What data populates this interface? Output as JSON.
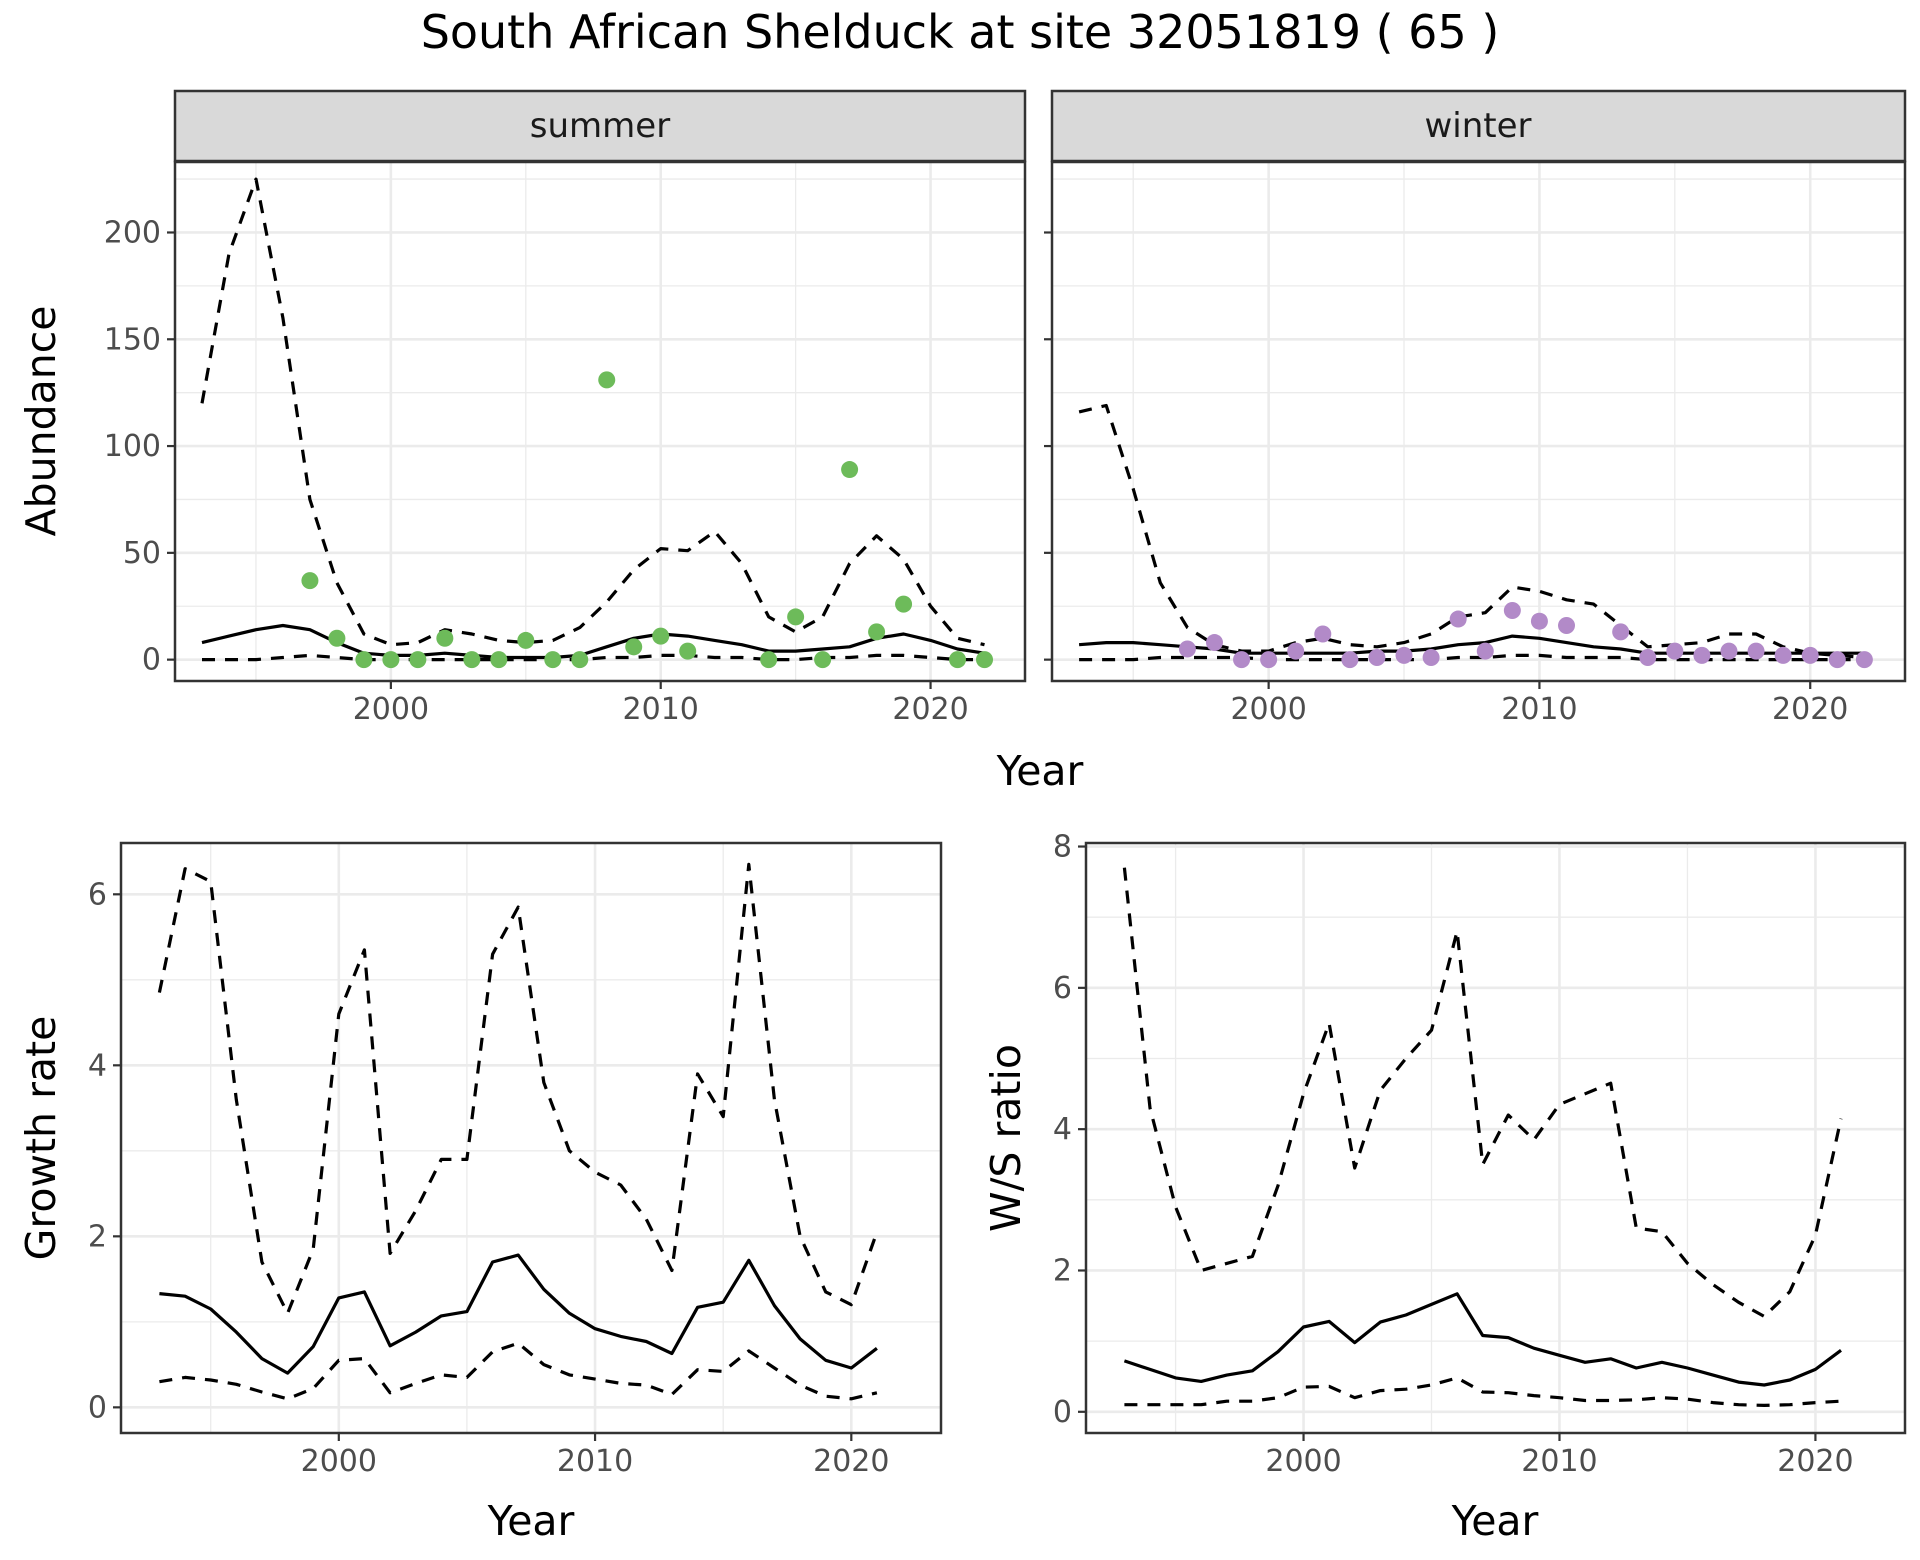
{
  "title": "South African Shelduck at site 32051819 ( 65 )",
  "colors": {
    "summer": "#6dbb5a",
    "winter": "#b28ac8",
    "line": "#000000"
  },
  "chart_data": [
    {
      "type": "line",
      "facet": "summer",
      "xlabel": "Year",
      "ylabel": "Abundance",
      "xlim": [
        1992,
        2023.5
      ],
      "ylim": [
        -10,
        233
      ],
      "xticks": [
        2000,
        2010,
        2020
      ],
      "yticks": [
        0,
        50,
        100,
        150,
        200
      ],
      "x": [
        1993,
        1994,
        1995,
        1996,
        1997,
        1998,
        1999,
        2000,
        2001,
        2002,
        2003,
        2004,
        2005,
        2006,
        2007,
        2008,
        2009,
        2010,
        2011,
        2012,
        2013,
        2014,
        2015,
        2016,
        2017,
        2018,
        2019,
        2020,
        2021,
        2022
      ],
      "series": [
        {
          "role": "mid",
          "style": "solid",
          "values": [
            8,
            11,
            14,
            16,
            14,
            8,
            3,
            2,
            2,
            3,
            2,
            1,
            1,
            1,
            2,
            6,
            10,
            12,
            11,
            9,
            7,
            4,
            4,
            5,
            6,
            10,
            12,
            9,
            5,
            3
          ]
        },
        {
          "role": "upper",
          "style": "dashed",
          "values": [
            120,
            190,
            225,
            160,
            75,
            36,
            12,
            7,
            8,
            14,
            12,
            9,
            8,
            9,
            15,
            27,
            42,
            52,
            51,
            60,
            45,
            20,
            13,
            20,
            45,
            58,
            47,
            25,
            10,
            7
          ]
        },
        {
          "role": "lower",
          "style": "dashed",
          "values": [
            0,
            0,
            0,
            1,
            2,
            1,
            0,
            0,
            0,
            0,
            0,
            0,
            0,
            0,
            0,
            1,
            1,
            2,
            2,
            1,
            1,
            0,
            0,
            1,
            1,
            2,
            2,
            1,
            0,
            0
          ]
        }
      ],
      "points": {
        "x": [
          1997,
          1998,
          1999,
          2000,
          2001,
          2002,
          2003,
          2004,
          2005,
          2006,
          2007,
          2008,
          2009,
          2010,
          2011,
          2014,
          2015,
          2016,
          2017,
          2018,
          2019,
          2021,
          2022
        ],
        "y": [
          37,
          10,
          0,
          0,
          0,
          10,
          0,
          0,
          9,
          0,
          0,
          131,
          6,
          11,
          4,
          0,
          20,
          0,
          89,
          13,
          26,
          0,
          0
        ]
      }
    },
    {
      "type": "line",
      "facet": "winter",
      "xlabel": "Year",
      "ylabel": "Abundance",
      "xlim": [
        1992,
        2023.5
      ],
      "ylim": [
        -10,
        233
      ],
      "xticks": [
        2000,
        2010,
        2020
      ],
      "x": [
        1993,
        1994,
        1995,
        1996,
        1997,
        1998,
        1999,
        2000,
        2001,
        2002,
        2003,
        2004,
        2005,
        2006,
        2007,
        2008,
        2009,
        2010,
        2011,
        2012,
        2013,
        2014,
        2015,
        2016,
        2017,
        2018,
        2019,
        2020,
        2021,
        2022
      ],
      "series": [
        {
          "role": "mid",
          "style": "solid",
          "values": [
            7,
            8,
            8,
            7,
            6,
            5,
            3,
            3,
            3,
            3,
            3,
            4,
            4,
            5,
            7,
            8,
            11,
            10,
            8,
            6,
            5,
            3,
            3,
            3,
            3,
            3,
            3,
            3,
            3,
            3
          ]
        },
        {
          "role": "upper",
          "style": "dashed",
          "values": [
            116,
            119,
            80,
            36,
            15,
            7,
            4,
            4,
            8,
            10,
            7,
            6,
            8,
            12,
            20,
            22,
            34,
            32,
            28,
            26,
            16,
            6,
            7,
            8,
            12,
            12,
            6,
            3,
            2,
            1
          ]
        },
        {
          "role": "lower",
          "style": "dashed",
          "values": [
            0,
            0,
            0,
            1,
            1,
            1,
            1,
            0,
            0,
            0,
            0,
            0,
            0,
            0,
            1,
            1,
            2,
            2,
            1,
            1,
            1,
            0,
            0,
            0,
            0,
            0,
            0,
            0,
            0,
            0
          ]
        }
      ],
      "points": {
        "x": [
          1997,
          1998,
          1999,
          2000,
          2001,
          2002,
          2003,
          2004,
          2005,
          2006,
          2007,
          2008,
          2009,
          2010,
          2011,
          2013,
          2014,
          2015,
          2016,
          2017,
          2018,
          2019,
          2020,
          2021,
          2022
        ],
        "y": [
          5,
          8,
          0,
          0,
          4,
          12,
          0,
          1,
          2,
          1,
          19,
          4,
          23,
          18,
          16,
          13,
          1,
          4,
          2,
          4,
          4,
          2,
          2,
          0,
          0
        ]
      }
    },
    {
      "type": "line",
      "xlabel": "Year",
      "ylabel": "Growth rate",
      "xlim": [
        1991.5,
        2023.5
      ],
      "ylim": [
        -0.3,
        6.6
      ],
      "xticks": [
        2000,
        2010,
        2020
      ],
      "yticks": [
        0,
        2,
        4,
        6
      ],
      "x": [
        1993,
        1994,
        1995,
        1996,
        1997,
        1998,
        1999,
        2000,
        2001,
        2002,
        2003,
        2004,
        2005,
        2006,
        2007,
        2008,
        2009,
        2010,
        2011,
        2012,
        2013,
        2014,
        2015,
        2016,
        2017,
        2018,
        2019,
        2020,
        2021
      ],
      "series": [
        {
          "role": "mid",
          "style": "solid",
          "values": [
            1.33,
            1.3,
            1.15,
            0.88,
            0.57,
            0.4,
            0.71,
            1.28,
            1.35,
            0.72,
            0.88,
            1.07,
            1.12,
            1.7,
            1.78,
            1.38,
            1.1,
            0.92,
            0.83,
            0.77,
            0.63,
            1.17,
            1.23,
            1.72,
            1.19,
            0.8,
            0.55,
            0.46,
            0.69
          ]
        },
        {
          "role": "upper",
          "style": "dashed",
          "values": [
            4.85,
            6.3,
            6.15,
            3.6,
            1.7,
            1.1,
            1.85,
            4.6,
            5.35,
            1.8,
            2.3,
            2.9,
            2.9,
            5.3,
            5.85,
            3.8,
            3.0,
            2.75,
            2.6,
            2.2,
            1.6,
            3.9,
            3.4,
            6.35,
            3.6,
            2.0,
            1.35,
            1.2,
            2.05
          ]
        },
        {
          "role": "lower",
          "style": "dashed",
          "values": [
            0.3,
            0.35,
            0.32,
            0.27,
            0.18,
            0.1,
            0.22,
            0.55,
            0.57,
            0.17,
            0.28,
            0.38,
            0.35,
            0.65,
            0.75,
            0.5,
            0.38,
            0.33,
            0.28,
            0.26,
            0.15,
            0.44,
            0.42,
            0.66,
            0.46,
            0.26,
            0.13,
            0.1,
            0.17
          ]
        }
      ]
    },
    {
      "type": "line",
      "xlabel": "Year",
      "ylabel": "W/S ratio",
      "xlim": [
        1991.5,
        2023.5
      ],
      "ylim": [
        -0.3,
        8.05
      ],
      "xticks": [
        2000,
        2010,
        2020
      ],
      "yticks": [
        0,
        2,
        4,
        6,
        8
      ],
      "x": [
        1993,
        1994,
        1995,
        1996,
        1997,
        1998,
        1999,
        2000,
        2001,
        2002,
        2003,
        2004,
        2005,
        2006,
        2007,
        2008,
        2009,
        2010,
        2011,
        2012,
        2013,
        2014,
        2015,
        2016,
        2017,
        2018,
        2019,
        2020,
        2021
      ],
      "series": [
        {
          "role": "mid",
          "style": "solid",
          "values": [
            0.72,
            0.6,
            0.48,
            0.43,
            0.52,
            0.58,
            0.85,
            1.2,
            1.28,
            0.98,
            1.27,
            1.37,
            1.52,
            1.67,
            1.08,
            1.05,
            0.9,
            0.8,
            0.7,
            0.75,
            0.62,
            0.7,
            0.62,
            0.52,
            0.42,
            0.38,
            0.45,
            0.6,
            0.87
          ]
        },
        {
          "role": "upper",
          "style": "dashed",
          "values": [
            7.7,
            4.3,
            2.9,
            2.0,
            2.1,
            2.2,
            3.2,
            4.5,
            5.5,
            3.45,
            4.55,
            5.0,
            5.4,
            6.8,
            3.5,
            4.2,
            3.85,
            4.35,
            4.5,
            4.65,
            2.6,
            2.55,
            2.1,
            1.8,
            1.55,
            1.35,
            1.7,
            2.5,
            4.15
          ]
        },
        {
          "role": "lower",
          "style": "dashed",
          "values": [
            0.1,
            0.1,
            0.1,
            0.1,
            0.15,
            0.15,
            0.2,
            0.35,
            0.36,
            0.2,
            0.3,
            0.32,
            0.38,
            0.48,
            0.28,
            0.27,
            0.23,
            0.2,
            0.16,
            0.16,
            0.17,
            0.2,
            0.18,
            0.13,
            0.1,
            0.09,
            0.1,
            0.13,
            0.15
          ]
        }
      ]
    }
  ]
}
